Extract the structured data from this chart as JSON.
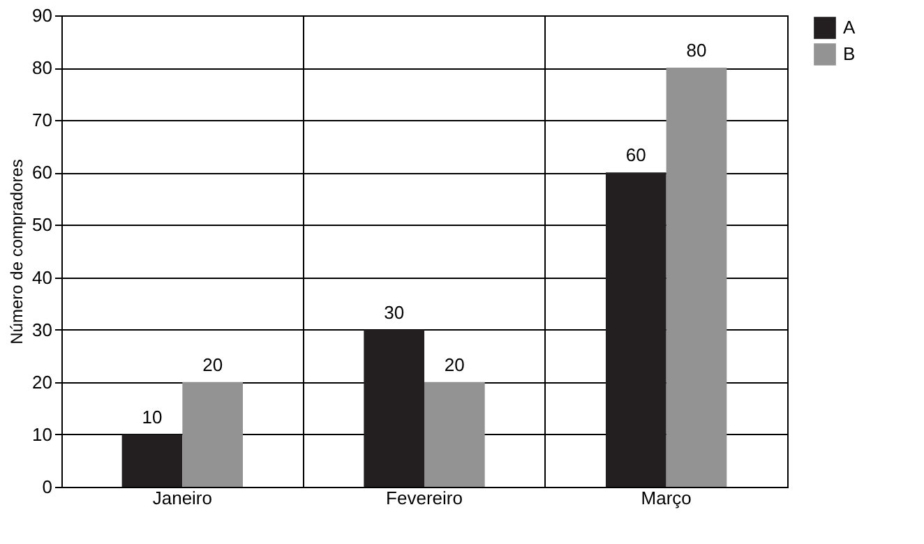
{
  "chart_data": {
    "type": "bar",
    "ylabel": "Número de compradores",
    "categories": [
      "Janeiro",
      "Fevereiro",
      "Março"
    ],
    "series": [
      {
        "name": "A",
        "color": "#231f20",
        "values": [
          10,
          30,
          60
        ]
      },
      {
        "name": "B",
        "color": "#939393",
        "values": [
          20,
          20,
          80
        ]
      }
    ],
    "ylim": [
      0,
      90
    ],
    "yticks": [
      0,
      10,
      20,
      30,
      40,
      50,
      60,
      70,
      80,
      90
    ],
    "grid": true,
    "legend": "right",
    "data_labels": true
  }
}
